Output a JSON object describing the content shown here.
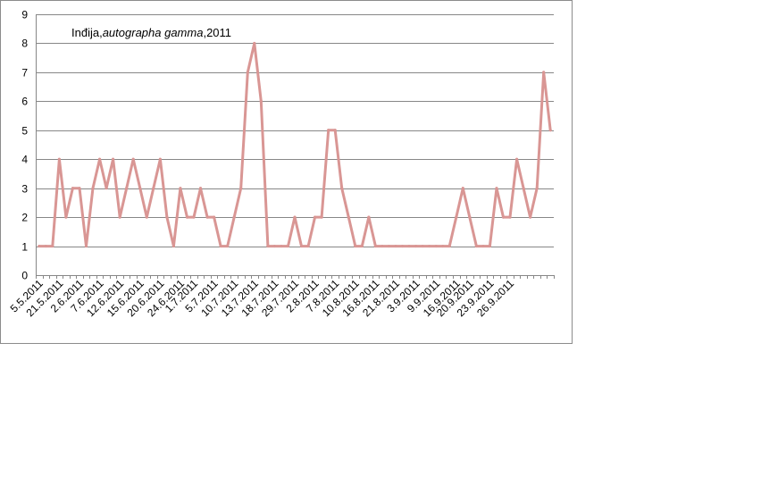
{
  "chart_data": {
    "type": "line",
    "title_parts": [
      {
        "text": "Inđija,",
        "italic": false
      },
      {
        "text": "autographa gamma",
        "italic": true
      },
      {
        "text": ",2011",
        "italic": false
      }
    ],
    "xlabel": "",
    "ylabel": "",
    "ylim": [
      0,
      9
    ],
    "yticks": [
      "0",
      "1",
      "2",
      "3",
      "4",
      "5",
      "6",
      "7",
      "8",
      "9"
    ],
    "x_tick_labels": [
      "5.5.2011",
      "21.5.2011",
      "2.6.2011",
      "7.6.2011",
      "12.6.2011",
      "15.6.2011",
      "20.6.2011",
      "24.6.2011",
      "1.7.2011",
      "5.7.2011",
      "10.7.2011",
      "13.7.2011",
      "18.7.2011",
      "29.7.2011",
      "2.8.2011",
      "7.8.2011",
      "10.8.2011",
      "16.8.2011",
      "21.8.2011",
      "3.9.2011",
      "9.9.2011",
      "16.9.2011",
      "20.9.2011",
      "23.9.2011",
      "26.9.2011"
    ],
    "grid": true,
    "legend": "none",
    "series_color": "#d99694",
    "gridline_color": "#878787",
    "values": [
      1,
      1,
      1,
      4,
      2,
      3,
      3,
      1,
      3,
      4,
      3,
      4,
      2,
      3,
      4,
      3,
      2,
      3,
      4,
      2,
      1,
      3,
      2,
      2,
      3,
      2,
      2,
      1,
      1,
      2,
      3,
      7,
      8,
      6,
      1,
      1,
      1,
      1,
      2,
      1,
      1,
      2,
      2,
      5,
      5,
      3,
      2,
      1,
      1,
      2,
      1,
      1,
      1,
      1,
      1,
      1,
      1,
      1,
      1,
      1,
      1,
      1,
      2,
      3,
      2,
      1,
      1,
      1,
      3,
      2,
      2,
      4,
      3,
      2,
      3,
      7,
      5
    ]
  }
}
